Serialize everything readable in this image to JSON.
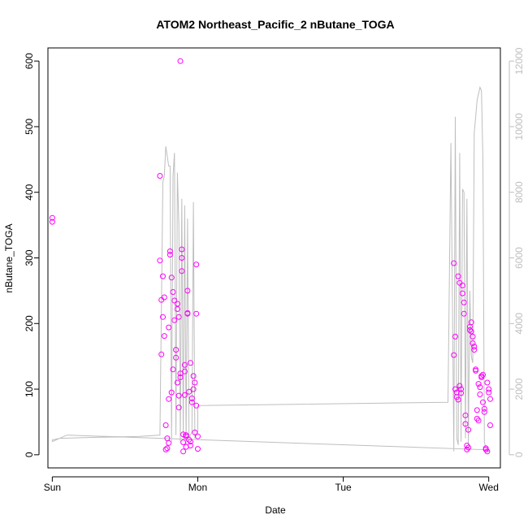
{
  "chart_data": {
    "type": "scatter",
    "title": "ATOM2 Northeast_Pacific_2 nButane_TOGA",
    "xlabel": "Date",
    "ylabel": "nButane_TOGA",
    "x_ticks": [
      "Sun",
      "Mon",
      "Tue",
      "Wed"
    ],
    "xlim": [
      -0.03,
      3.08
    ],
    "ylim": [
      -20,
      620
    ],
    "y_ticks": [
      0,
      100,
      200,
      300,
      400,
      500,
      600
    ],
    "y2lim": [
      -400,
      12400
    ],
    "y2_ticks": [
      0,
      2000,
      4000,
      6000,
      8000,
      10000,
      12000
    ],
    "grid": false,
    "colors": {
      "points": "#ff00ff",
      "altitude_line": "#bebebe",
      "axes": "#000000",
      "right_axis": "#bebebe"
    },
    "series": [
      {
        "kind": "points",
        "x": [
          0.0,
          0.0,
          0.74,
          0.74,
          0.75,
          0.75,
          0.76,
          0.76,
          0.77,
          0.77,
          0.78,
          0.78,
          0.79,
          0.79,
          0.8,
          0.8,
          0.8,
          0.81,
          0.81,
          0.82,
          0.82,
          0.83,
          0.83,
          0.84,
          0.84,
          0.85,
          0.85,
          0.86,
          0.86,
          0.86,
          0.87,
          0.87,
          0.87,
          0.88,
          0.88,
          0.88,
          0.89,
          0.89,
          0.89,
          0.9,
          0.9,
          0.9,
          0.91,
          0.91,
          0.91,
          0.92,
          0.92,
          0.92,
          0.93,
          0.93,
          0.93,
          0.94,
          0.94,
          0.95,
          0.95,
          0.95,
          0.96,
          0.96,
          0.97,
          0.97,
          0.98,
          0.98,
          0.99,
          0.99,
          0.99,
          1.0,
          1.0,
          2.76,
          2.76,
          2.77,
          2.77,
          2.78,
          2.78,
          2.79,
          2.79,
          2.8,
          2.8,
          2.81,
          2.81,
          2.82,
          2.82,
          2.83,
          2.83,
          2.84,
          2.84,
          2.85,
          2.85,
          2.86,
          2.86,
          2.87,
          2.87,
          2.88,
          2.88,
          2.89,
          2.89,
          2.9,
          2.9,
          2.91,
          2.91,
          2.92,
          2.92,
          2.93,
          2.93,
          2.94,
          2.94,
          2.95,
          2.95,
          2.96,
          2.96,
          2.97,
          2.97,
          2.98,
          2.98,
          2.99,
          2.99,
          3.0,
          3.0,
          3.01,
          3.01
        ],
        "y": [
          361,
          355,
          425,
          296,
          236,
          153,
          272,
          210,
          240,
          181,
          8,
          45,
          10,
          25,
          18,
          85,
          194,
          310,
          305,
          95,
          270,
          248,
          130,
          205,
          235,
          148,
          160,
          110,
          230,
          222,
          210,
          72,
          90,
          600,
          118,
          124,
          313,
          300,
          280,
          31,
          19,
          5,
          137,
          127,
          91,
          28,
          30,
          12,
          250,
          216,
          215,
          96,
          23,
          14,
          20,
          140,
          86,
          80,
          120,
          100,
          110,
          34,
          215,
          75,
          290,
          9,
          28,
          292,
          152,
          180,
          100,
          95,
          88,
          84,
          272,
          262,
          105,
          100,
          94,
          258,
          246,
          232,
          215,
          60,
          47,
          14,
          8,
          11,
          38,
          195,
          190,
          202,
          188,
          180,
          170,
          165,
          160,
          130,
          128,
          68,
          55,
          52,
          108,
          103,
          92,
          120,
          118,
          122,
          80,
          70,
          65,
          10,
          8,
          5,
          110,
          100,
          95,
          85,
          45
        ]
      },
      {
        "kind": "line",
        "axis": "right",
        "x": [
          0.0,
          0.0,
          0.05,
          0.3,
          0.6,
          0.74,
          0.76,
          0.77,
          0.78,
          0.8,
          0.81,
          0.82,
          0.83,
          0.84,
          0.85,
          0.86,
          0.87,
          0.88,
          0.89,
          0.9,
          0.91,
          0.92,
          0.93,
          0.94,
          0.95,
          0.96,
          0.97,
          0.98,
          0.99,
          1.0,
          1.0,
          2.72,
          2.74,
          2.76,
          2.77,
          2.78,
          2.79,
          2.8,
          2.81,
          2.82,
          2.83,
          2.84,
          2.85,
          2.86,
          2.87,
          2.88,
          2.89,
          2.9,
          2.91,
          2.92,
          2.93,
          2.94,
          2.95,
          2.96,
          2.97,
          2.98,
          2.99,
          3.0,
          3.0,
          0.1,
          0.0
        ],
        "y": [
          400,
          450,
          500,
          530,
          560,
          600,
          8300,
          8500,
          9400,
          8800,
          8800,
          400,
          8500,
          9200,
          600,
          8600,
          7000,
          400,
          7800,
          500,
          7600,
          300,
          7200,
          500,
          600,
          700,
          7700,
          500,
          600,
          700,
          1500,
          1600,
          9500,
          100,
          10300,
          500,
          300,
          9200,
          400,
          8100,
          8000,
          500,
          7800,
          300,
          5000,
          3000,
          2800,
          9800,
          10300,
          10800,
          11000,
          11200,
          11100,
          9000,
          400,
          200,
          100,
          100,
          150,
          600,
          400
        ]
      }
    ]
  }
}
